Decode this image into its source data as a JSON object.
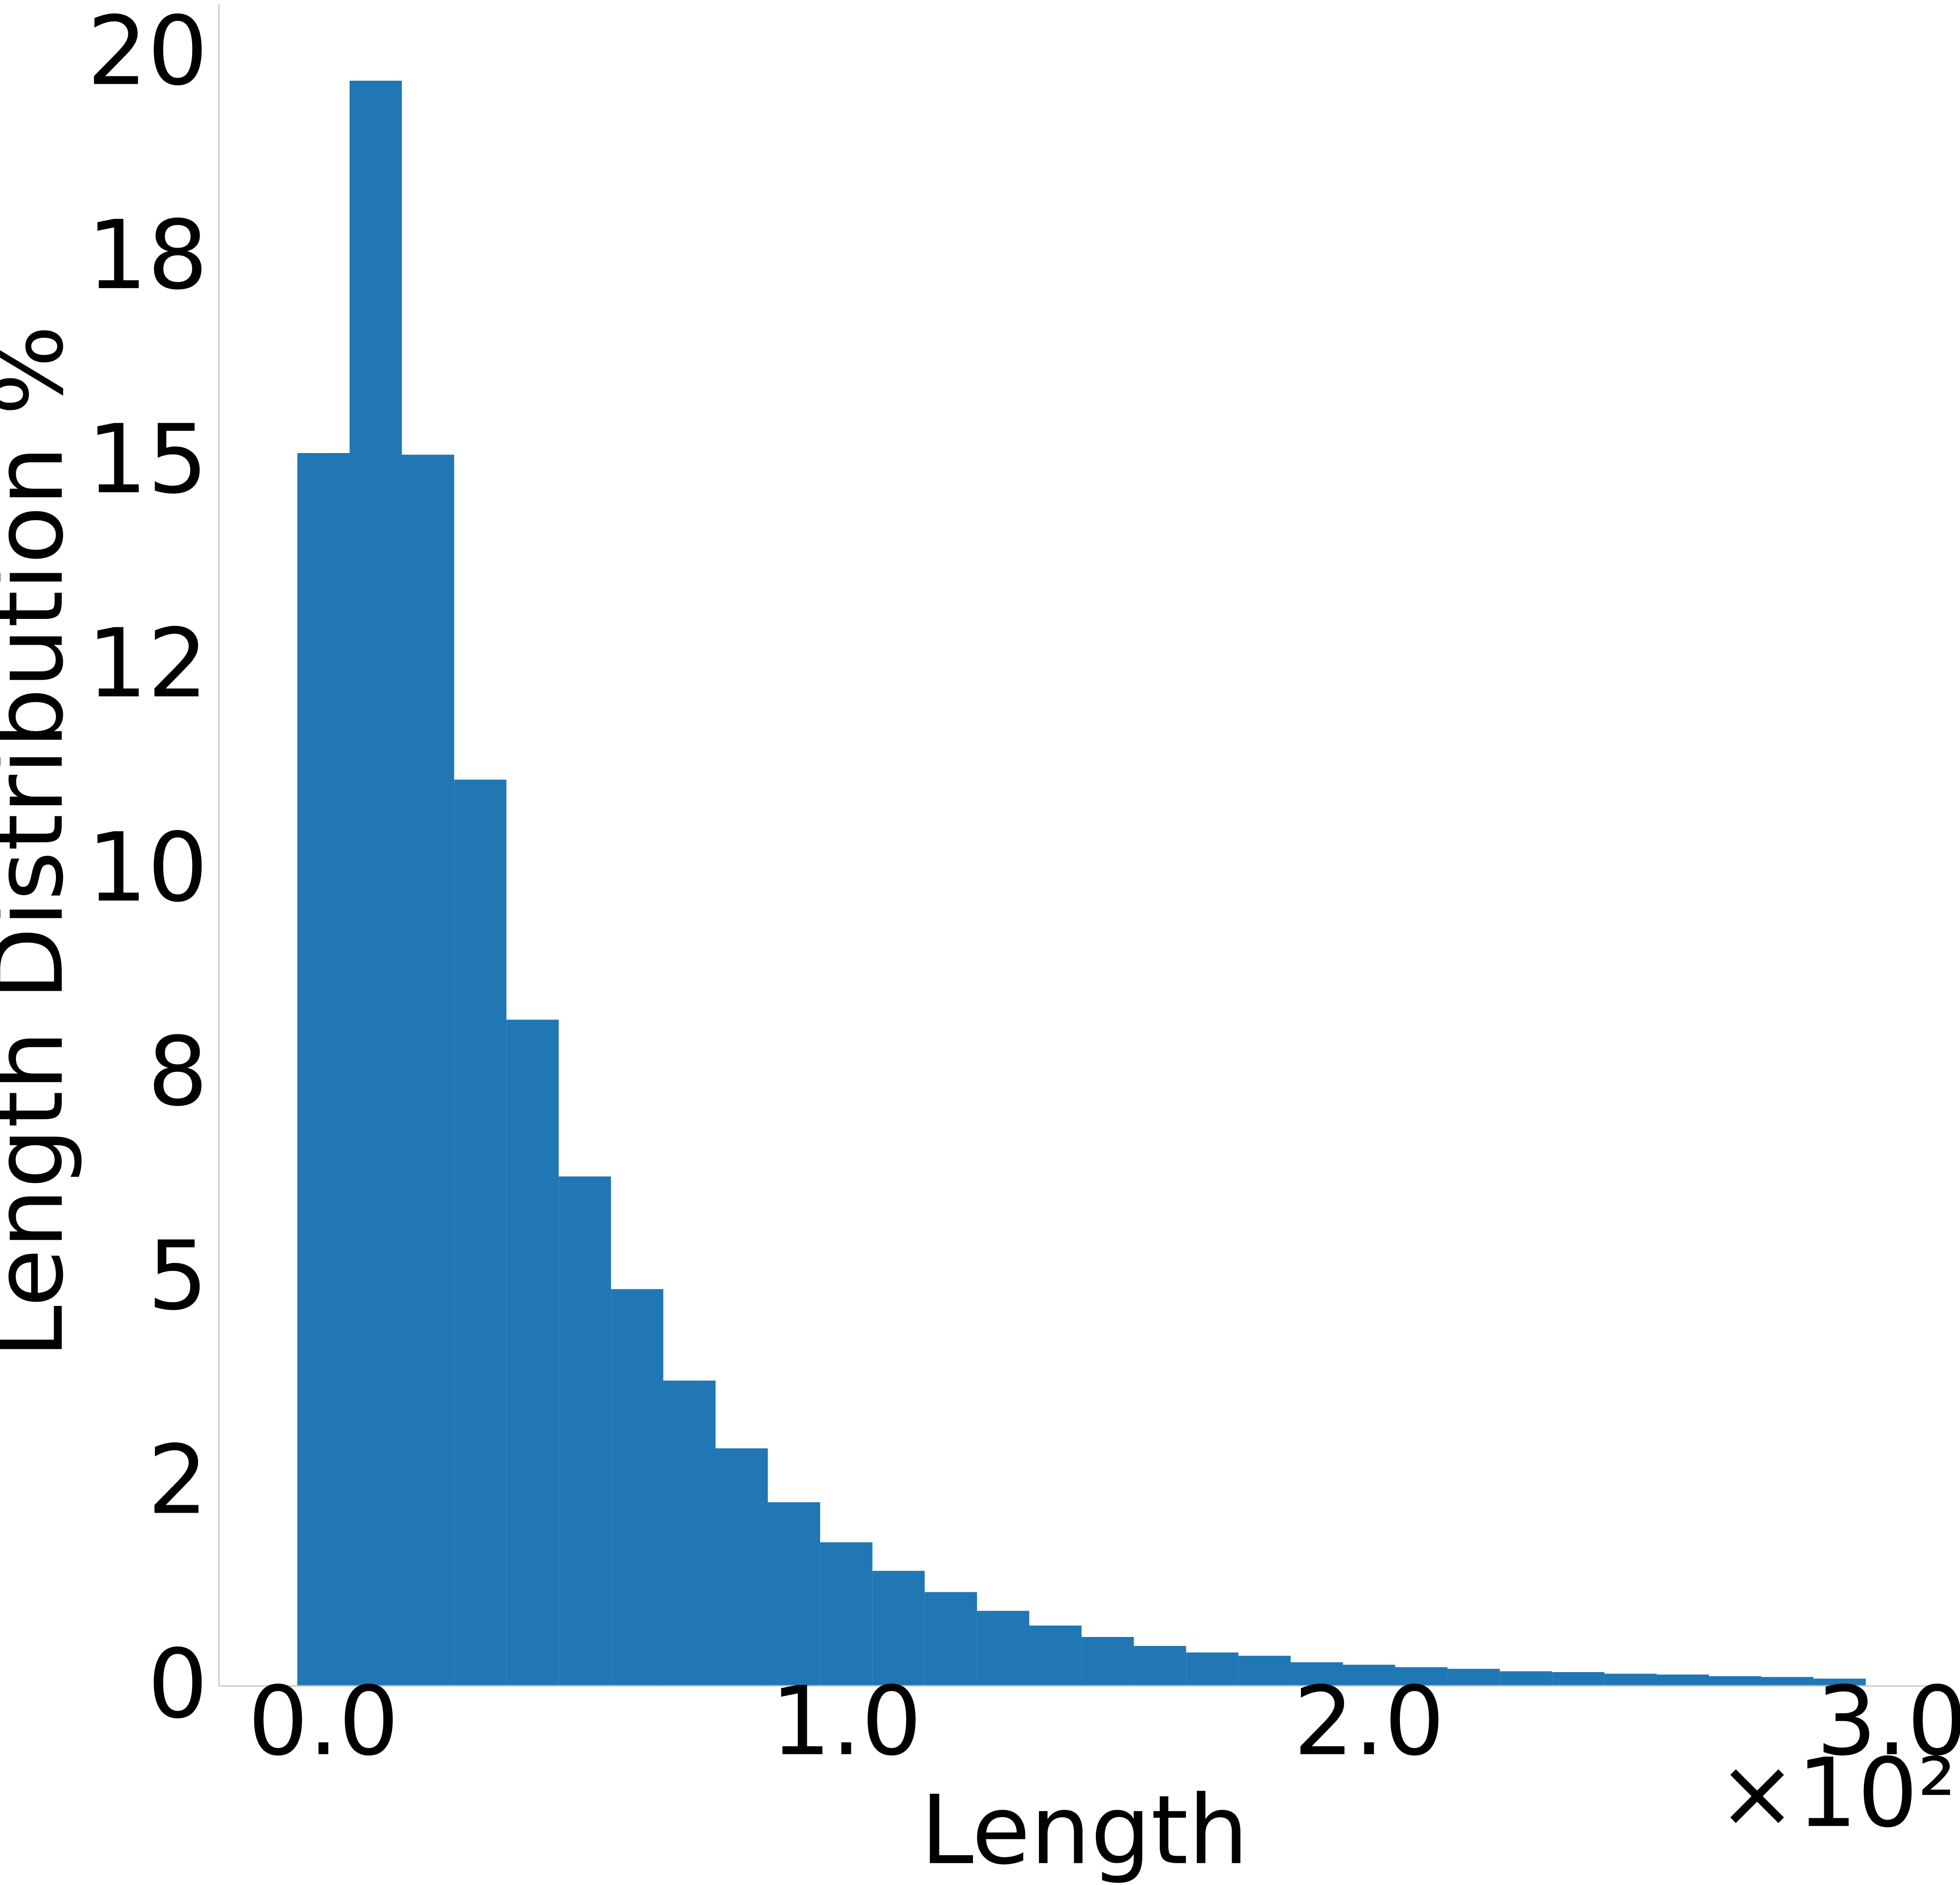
{
  "chart_data": {
    "type": "histogram",
    "xlabel": "Length",
    "ylabel": "Length Distribution %",
    "x_offset_label": "×10²",
    "bins": [
      -5,
      5,
      15,
      25,
      35,
      45,
      55,
      65,
      75,
      85,
      95,
      105,
      115,
      125,
      135,
      145,
      155,
      165,
      175,
      185,
      195,
      205,
      215,
      225,
      235,
      245,
      255,
      265,
      275,
      285,
      295
    ],
    "values": [
      15.1,
      19.66,
      15.08,
      11.1,
      8.16,
      6.24,
      4.86,
      3.74,
      2.91,
      2.25,
      1.76,
      1.41,
      1.15,
      0.92,
      0.74,
      0.6,
      0.49,
      0.41,
      0.37,
      0.29,
      0.26,
      0.23,
      0.21,
      0.18,
      0.17,
      0.15,
      0.14,
      0.12,
      0.11,
      0.09
    ],
    "color": "#2077b4",
    "xlim": [
      -20,
      308
    ],
    "ylim": [
      0,
      20.6
    ],
    "xticks": [
      {
        "value": 0,
        "label": "0.0"
      },
      {
        "value": 100,
        "label": "1.0"
      },
      {
        "value": 200,
        "label": "2.0"
      },
      {
        "value": 300,
        "label": "3.0"
      }
    ],
    "yticks": [
      0,
      {
        "value": 2.5,
        "label": "2"
      },
      5,
      {
        "value": 7.5,
        "label": "8"
      },
      10,
      {
        "value": 12.5,
        "label": "12"
      },
      15,
      {
        "value": 17.5,
        "label": "18"
      },
      20
    ],
    "grid": false
  }
}
